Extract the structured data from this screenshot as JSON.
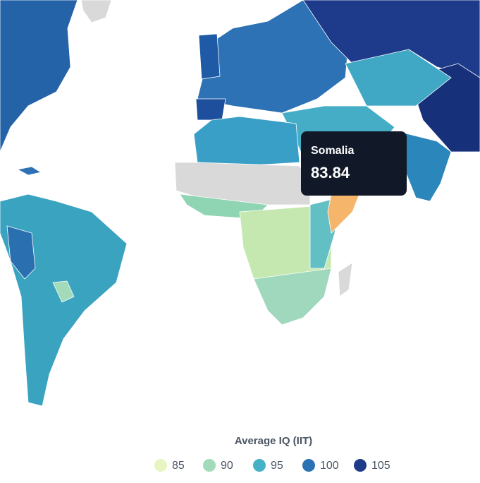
{
  "tooltip": {
    "country": "Somalia",
    "value": 83.84
  },
  "legend": {
    "title": "Average IQ (IIT)",
    "items": [
      {
        "label": 85,
        "color": "#e6f5c1"
      },
      {
        "label": 90,
        "color": "#a2dbb9"
      },
      {
        "label": 95,
        "color": "#45b1c6"
      },
      {
        "label": 100,
        "color": "#2a72b4"
      },
      {
        "label": 105,
        "color": "#1e3a8a"
      }
    ]
  }
}
